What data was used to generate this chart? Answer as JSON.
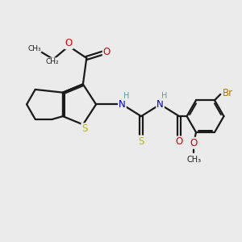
{
  "background_color": "#ebebeb",
  "bond_color": "#1a1a1a",
  "S_color": "#b8b800",
  "N_color": "#0000cc",
  "O_color": "#dd0000",
  "Br_color": "#b87800",
  "teal_color": "#5f9ea0",
  "figsize": [
    3.0,
    3.0
  ],
  "dpi": 100,
  "xlim": [
    0,
    10
  ],
  "ylim": [
    0,
    10
  ]
}
